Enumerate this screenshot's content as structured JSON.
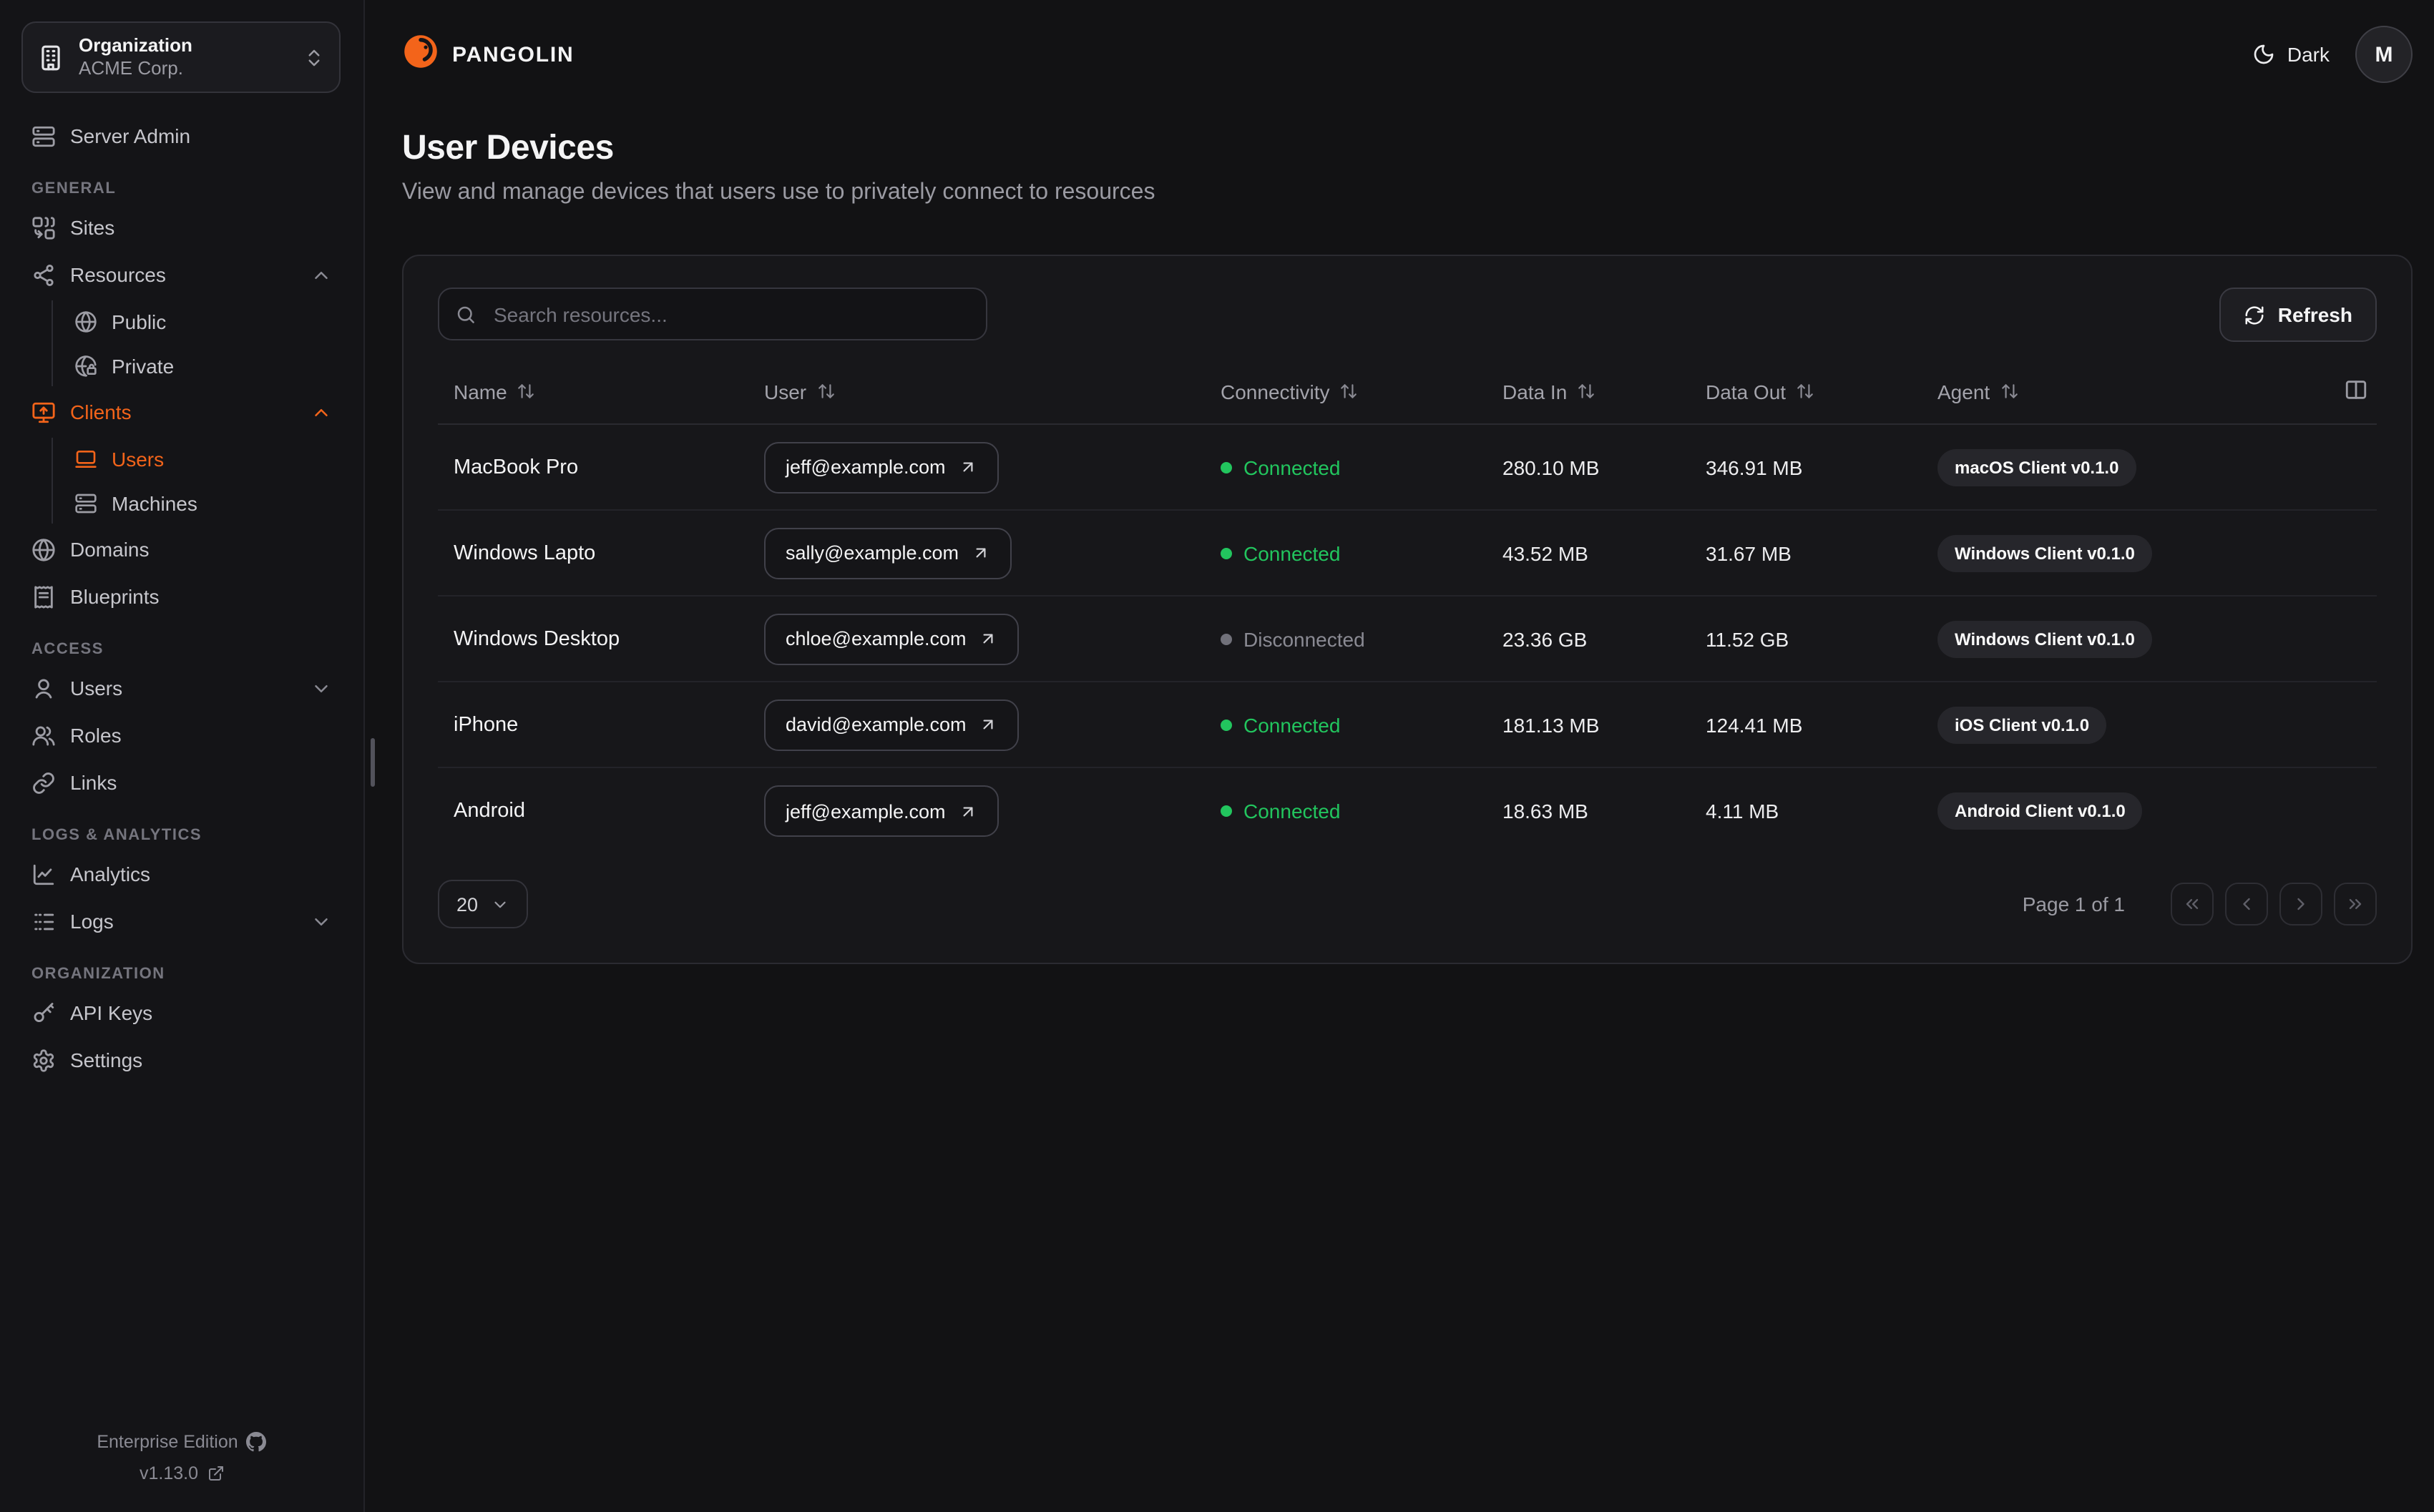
{
  "colors": {
    "accent": "#f3641a",
    "connected": "#22c55e",
    "disconnected": "#71717a"
  },
  "header": {
    "brand": "PANGOLIN",
    "logo_icon": "pangolin-logo",
    "theme_toggle": {
      "icon": "moon-icon",
      "label": "Dark"
    },
    "avatar_initial": "M"
  },
  "page": {
    "title": "User Devices",
    "subtitle": "View and manage devices that users use to privately connect to resources"
  },
  "sidebar": {
    "org": {
      "icon": "building-icon",
      "label": "Organization",
      "value": "ACME Corp."
    },
    "top_items": [
      {
        "icon": "server",
        "label": "Server Admin"
      }
    ],
    "groups": [
      {
        "label": "GENERAL",
        "items": [
          {
            "icon": "sites",
            "label": "Sites"
          },
          {
            "icon": "resources",
            "label": "Resources",
            "chevron": "up",
            "children": [
              {
                "icon": "globe",
                "label": "Public"
              },
              {
                "icon": "globe-lock",
                "label": "Private"
              }
            ]
          },
          {
            "icon": "monitor-up",
            "label": "Clients",
            "accent": true,
            "chevron": "up",
            "children": [
              {
                "icon": "laptop",
                "label": "Users",
                "accent": true,
                "active": true
              },
              {
                "icon": "server",
                "label": "Machines"
              }
            ]
          },
          {
            "icon": "globe",
            "label": "Domains"
          },
          {
            "icon": "receipt",
            "label": "Blueprints"
          }
        ]
      },
      {
        "label": "ACCESS",
        "items": [
          {
            "icon": "user",
            "label": "Users",
            "chevron": "down"
          },
          {
            "icon": "users",
            "label": "Roles"
          },
          {
            "icon": "link",
            "label": "Links"
          }
        ]
      },
      {
        "label": "LOGS & ANALYTICS",
        "items": [
          {
            "icon": "chart",
            "label": "Analytics"
          },
          {
            "icon": "logs",
            "label": "Logs",
            "chevron": "down"
          }
        ]
      },
      {
        "label": "ORGANIZATION",
        "items": [
          {
            "icon": "key",
            "label": "API Keys"
          },
          {
            "icon": "gear",
            "label": "Settings"
          }
        ]
      }
    ],
    "footer": {
      "edition": "Enterprise Edition",
      "edition_icon": "github-icon",
      "version": "v1.13.0",
      "version_icon": "external-link-icon"
    }
  },
  "table": {
    "search_placeholder": "Search resources...",
    "search_icon": "search-icon",
    "refresh": {
      "icon": "refresh-icon",
      "label": "Refresh"
    },
    "columns_toggle_icon": "columns-icon",
    "sort_icon": "arrow-up-down-icon",
    "columns": [
      "Name",
      "User",
      "Connectivity",
      "Data In",
      "Data Out",
      "Agent"
    ],
    "rows": [
      {
        "name": "MacBook Pro",
        "user": "jeff@example.com",
        "connectivity": "Connected",
        "connected": true,
        "data_in": "280.10 MB",
        "data_out": "346.91 MB",
        "agent": "macOS Client v0.1.0"
      },
      {
        "name": "Windows Lapto",
        "user": "sally@example.com",
        "connectivity": "Connected",
        "connected": true,
        "data_in": "43.52 MB",
        "data_out": "31.67 MB",
        "agent": "Windows Client v0.1.0"
      },
      {
        "name": "Windows Desktop",
        "user": "chloe@example.com",
        "connectivity": "Disconnected",
        "connected": false,
        "data_in": "23.36 GB",
        "data_out": "11.52 GB",
        "agent": "Windows Client v0.1.0"
      },
      {
        "name": "iPhone",
        "user": "david@example.com",
        "connectivity": "Connected",
        "connected": true,
        "data_in": "181.13 MB",
        "data_out": "124.41 MB",
        "agent": "iOS Client v0.1.0"
      },
      {
        "name": "Android",
        "user": "jeff@example.com",
        "connectivity": "Connected",
        "connected": true,
        "data_in": "18.63 MB",
        "data_out": "4.11 MB",
        "agent": "Android Client v0.1.0"
      }
    ],
    "pagination": {
      "page_size": "20",
      "page_info": "Page 1 of 1",
      "buttons": [
        "first-page",
        "previous-page",
        "next-page",
        "last-page"
      ]
    }
  }
}
